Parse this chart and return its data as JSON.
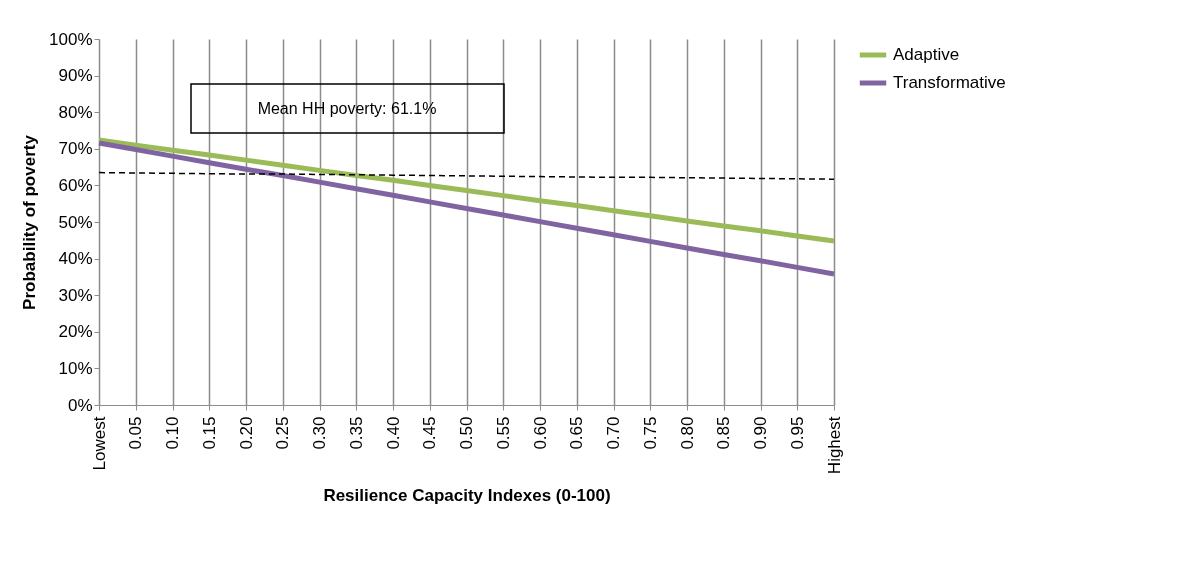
{
  "chart_data": {
    "type": "line",
    "xlabel": "Resilience Capacity Indexes (0-100)",
    "ylabel": "Probability of poverty",
    "categories": [
      "Lowest",
      "0.05",
      "0.10",
      "0.15",
      "0.20",
      "0.25",
      "0.30",
      "0.35",
      "0.40",
      "0.45",
      "0.50",
      "0.55",
      "0.60",
      "0.65",
      "0.70",
      "0.75",
      "0.80",
      "0.85",
      "0.90",
      "0.95",
      "Highest"
    ],
    "series": [
      {
        "name": "Adaptive",
        "color": "#9bbb59",
        "values": [
          72.4,
          71.0,
          69.6,
          68.3,
          66.9,
          65.5,
          64.1,
          62.7,
          61.4,
          60.0,
          58.6,
          57.2,
          55.8,
          54.5,
          53.1,
          51.7,
          50.3,
          48.9,
          47.6,
          46.2,
          44.8
        ]
      },
      {
        "name": "Transformative",
        "color": "#8064a2",
        "values": [
          71.6,
          69.8,
          68.0,
          66.2,
          64.4,
          62.7,
          60.9,
          59.1,
          57.3,
          55.5,
          53.7,
          51.9,
          50.1,
          48.3,
          46.5,
          44.7,
          42.9,
          41.1,
          39.4,
          37.6,
          35.8
        ]
      },
      {
        "color": "#000000",
        "line_style": "dashed",
        "values": [
          63.5,
          63.4,
          63.3,
          63.2,
          63.1,
          63.1,
          63.0,
          62.9,
          62.8,
          62.7,
          62.6,
          62.5,
          62.4,
          62.3,
          62.2,
          62.2,
          62.1,
          62.0,
          61.9,
          61.8,
          61.7
        ]
      }
    ],
    "ylim": [
      0,
      100
    ],
    "yticks": [
      {
        "value": 0,
        "label": "0%"
      },
      {
        "value": 10,
        "label": "10%"
      },
      {
        "value": 20,
        "label": "20%"
      },
      {
        "value": 30,
        "label": "30%"
      },
      {
        "value": 40,
        "label": "40%"
      },
      {
        "value": 50,
        "label": "50%"
      },
      {
        "value": 60,
        "label": "60%"
      },
      {
        "value": 70,
        "label": "70%"
      },
      {
        "value": 80,
        "label": "80%"
      },
      {
        "value": 90,
        "label": "90%"
      },
      {
        "value": 100,
        "label": "100%"
      }
    ],
    "grid": "x",
    "legend": "right",
    "marker": "none",
    "annotations": [
      "Mean HH poverty: 61.1%"
    ]
  }
}
